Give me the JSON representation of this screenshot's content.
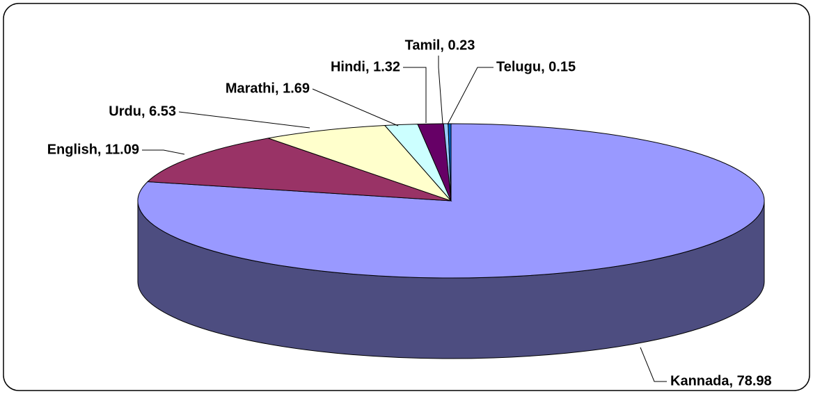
{
  "chart_data": {
    "type": "pie",
    "categories": [
      "Kannada",
      "English",
      "Urdu",
      "Marathi",
      "Hindi",
      "Tamil",
      "Telugu"
    ],
    "values": [
      78.98,
      11.09,
      6.53,
      1.69,
      1.32,
      0.23,
      0.15
    ],
    "value_labels": [
      "Kannada, 78.98",
      "English, 11.09",
      "Urdu, 6.53",
      "Marathi, 1.69",
      "Hindi, 1.32",
      "Tamil, 0.23",
      "Telugu, 0.15"
    ],
    "colors": [
      "#9999ff",
      "#993366",
      "#ffffcc",
      "#ccffff",
      "#660066",
      "#99ccff",
      "#0066cc"
    ]
  }
}
